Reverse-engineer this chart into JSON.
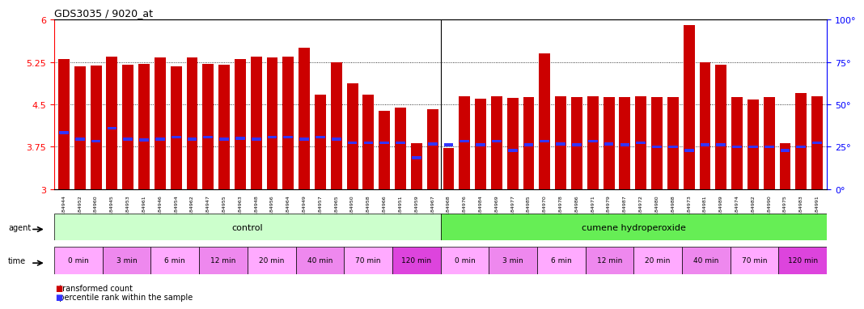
{
  "title": "GDS3035 / 9020_at",
  "ylim": [
    3,
    6
  ],
  "yticks_left": [
    3,
    3.75,
    4.5,
    5.25,
    6
  ],
  "yticks_right": [
    0,
    25,
    50,
    75,
    100
  ],
  "bar_color": "#cc0000",
  "dot_color": "#3333ff",
  "sample_ids": [
    "GSM184944",
    "GSM184952",
    "GSM184960",
    "GSM184945",
    "GSM184953",
    "GSM184961",
    "GSM184946",
    "GSM184954",
    "GSM184962",
    "GSM184947",
    "GSM184955",
    "GSM184963",
    "GSM184948",
    "GSM184956",
    "GSM184964",
    "GSM184949",
    "GSM184957",
    "GSM184965",
    "GSM184950",
    "GSM184958",
    "GSM184966",
    "GSM184951",
    "GSM184959",
    "GSM184967",
    "GSM184968",
    "GSM184976",
    "GSM184984",
    "GSM184969",
    "GSM184977",
    "GSM184985",
    "GSM184970",
    "GSM184978",
    "GSM184986",
    "GSM184971",
    "GSM184979",
    "GSM184987",
    "GSM184972",
    "GSM184980",
    "GSM184988",
    "GSM184973",
    "GSM184981",
    "GSM184989",
    "GSM184974",
    "GSM184982",
    "GSM184990",
    "GSM184975",
    "GSM184983",
    "GSM184991"
  ],
  "bar_values": [
    5.3,
    5.18,
    5.19,
    5.35,
    5.2,
    5.22,
    5.33,
    5.18,
    5.33,
    5.22,
    5.2,
    5.3,
    5.35,
    5.33,
    5.35,
    5.5,
    4.68,
    5.25,
    4.87,
    4.68,
    4.38,
    4.45,
    3.82,
    4.42,
    3.73,
    4.65,
    4.6,
    4.65,
    4.62,
    4.63,
    5.4,
    4.65,
    4.63,
    4.65,
    4.63,
    4.63,
    4.65,
    4.63,
    4.63,
    5.9,
    5.25,
    5.21,
    4.63,
    4.59,
    4.63,
    3.82,
    4.7,
    4.65
  ],
  "percentile_values": [
    4.0,
    3.88,
    3.85,
    4.08,
    3.88,
    3.87,
    3.88,
    3.92,
    3.88,
    3.92,
    3.88,
    3.9,
    3.88,
    3.92,
    3.92,
    3.88,
    3.92,
    3.88,
    3.82,
    3.82,
    3.82,
    3.82,
    3.55,
    3.8,
    3.78,
    3.85,
    3.78,
    3.85,
    3.68,
    3.78,
    3.85,
    3.8,
    3.78,
    3.85,
    3.8,
    3.78,
    3.82,
    3.75,
    3.75,
    3.68,
    3.78,
    3.78,
    3.75,
    3.75,
    3.75,
    3.68,
    3.75,
    3.82
  ],
  "agent_groups": [
    {
      "label": "control",
      "start": 0,
      "end": 24,
      "color": "#ccffcc"
    },
    {
      "label": "cumene hydroperoxide",
      "start": 24,
      "end": 48,
      "color": "#66ee55"
    }
  ],
  "time_groups": [
    {
      "label": "0 min",
      "count": 3,
      "color": "#ffaaff"
    },
    {
      "label": "3 min",
      "count": 3,
      "color": "#ee88ee"
    },
    {
      "label": "6 min",
      "count": 3,
      "color": "#ffaaff"
    },
    {
      "label": "12 min",
      "count": 3,
      "color": "#ee88ee"
    },
    {
      "label": "20 min",
      "count": 3,
      "color": "#ffaaff"
    },
    {
      "label": "40 min",
      "count": 3,
      "color": "#ee88ee"
    },
    {
      "label": "70 min",
      "count": 3,
      "color": "#ffaaff"
    },
    {
      "label": "120 min",
      "count": 3,
      "color": "#dd44dd"
    },
    {
      "label": "0 min",
      "count": 3,
      "color": "#ffaaff"
    },
    {
      "label": "3 min",
      "count": 3,
      "color": "#ee88ee"
    },
    {
      "label": "6 min",
      "count": 3,
      "color": "#ffaaff"
    },
    {
      "label": "12 min",
      "count": 3,
      "color": "#ee88ee"
    },
    {
      "label": "20 min",
      "count": 3,
      "color": "#ffaaff"
    },
    {
      "label": "40 min",
      "count": 3,
      "color": "#ee88ee"
    },
    {
      "label": "70 min",
      "count": 3,
      "color": "#ffaaff"
    },
    {
      "label": "120 min",
      "count": 3,
      "color": "#dd44dd"
    }
  ]
}
